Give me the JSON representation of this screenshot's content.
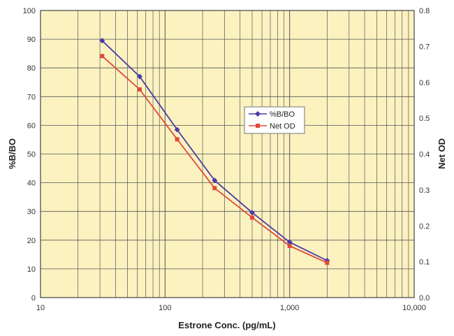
{
  "chart_data": {
    "type": "line",
    "title": "",
    "xlabel": "Estrone Conc. (pg/mL)",
    "ylabel": "%B/BO",
    "y2label": "Net OD",
    "xscale": "log",
    "xlim": [
      10,
      10000
    ],
    "ylim": [
      0,
      100
    ],
    "y2lim": [
      0,
      0.8
    ],
    "grid": true,
    "legend_position": "center-right",
    "x_tick_labels": [
      "10",
      "100",
      "1,000",
      "10,000"
    ],
    "x_tick_values": [
      10,
      100,
      1000,
      10000
    ],
    "y_tick_labels": [
      "0",
      "10",
      "20",
      "30",
      "40",
      "50",
      "60",
      "70",
      "80",
      "90",
      "100"
    ],
    "y2_tick_labels": [
      "0.0",
      "0.1",
      "0.2",
      "0.3",
      "0.4",
      "0.5",
      "0.6",
      "0.7",
      "0.8"
    ],
    "series": [
      {
        "name": "%B/BO",
        "axis": "left",
        "marker": "diamond",
        "color": "#4a3aa8",
        "x": [
          31.25,
          62.5,
          125,
          250,
          500,
          1000,
          2000
        ],
        "y": [
          89.5,
          77,
          58.5,
          40.8,
          29.6,
          19.3,
          12.9
        ]
      },
      {
        "name": "Net OD",
        "axis": "right",
        "marker": "square",
        "color": "#e04a3a",
        "x": [
          31.25,
          62.5,
          125,
          250,
          500,
          1000,
          2000
        ],
        "y": [
          0.673,
          0.58,
          0.441,
          0.305,
          0.223,
          0.144,
          0.097
        ]
      }
    ],
    "plot_background": "#fbf2c0",
    "grid_color": "#555555"
  }
}
